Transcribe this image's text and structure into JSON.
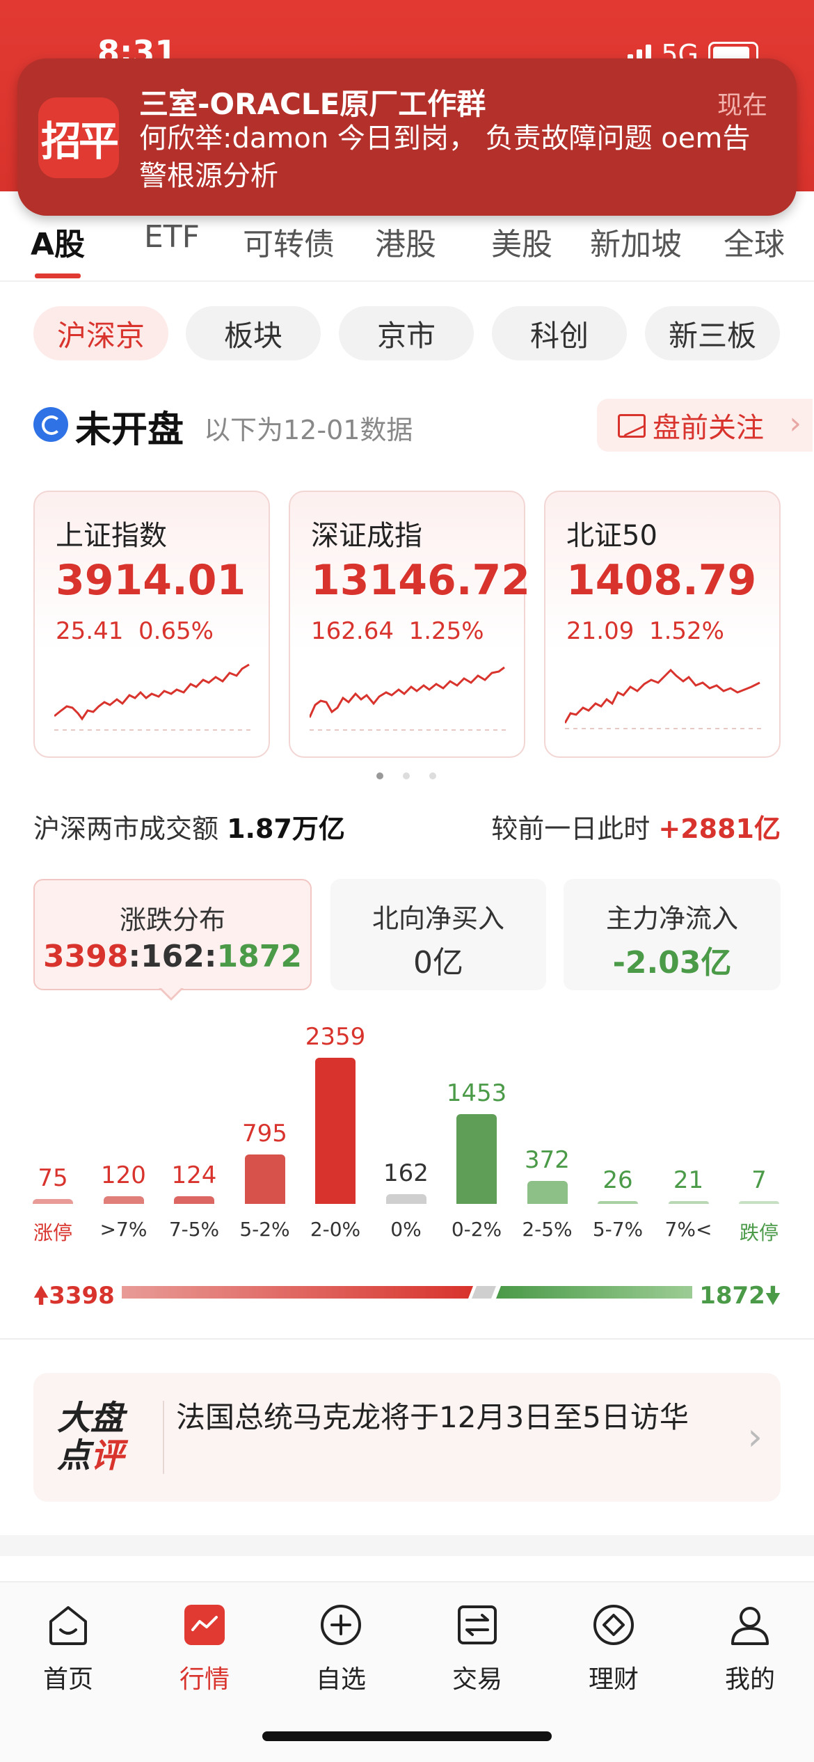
{
  "status_bar": {
    "time": "8:31",
    "network": "5G"
  },
  "notification": {
    "app_icon_text": "招平",
    "title": "三室-ORACLE原厂工作群",
    "time": "现在",
    "body": "何欣举:damon 今日到岗， 负责故障问题 oem告警根源分析"
  },
  "market_tabs": [
    "A股",
    "ETF",
    "可转债",
    "港股",
    "美股",
    "新加坡",
    "全球"
  ],
  "sub_tabs": [
    "沪深京",
    "板块",
    "京市",
    "科创",
    "新三板"
  ],
  "market_status": {
    "title": "未开盘",
    "subtitle": "以下为12-01数据",
    "premarket_label": "盘前关注"
  },
  "indices": [
    {
      "name": "上证指数",
      "value": "3914.01",
      "change": "25.41",
      "percent": "0.65%"
    },
    {
      "name": "深证成指",
      "value": "13146.72",
      "change": "162.64",
      "percent": "1.25%"
    },
    {
      "name": "北证50",
      "value": "1408.79",
      "change": "21.09",
      "percent": "1.52%"
    }
  ],
  "turnover": {
    "label": "沪深两市成交额",
    "value": "1.87万亿",
    "compare_label": "较前一日此时",
    "compare_value": "+2881亿"
  },
  "stats": {
    "updown": {
      "label": "涨跌分布",
      "up": "3398",
      "flat": "162",
      "down": "1872",
      "sep": ":"
    },
    "northbound": {
      "label": "北向净买入",
      "value": "0亿"
    },
    "mainflow": {
      "label": "主力净流入",
      "value": "-2.03亿"
    }
  },
  "chart_data": {
    "type": "bar",
    "categories": [
      "涨停",
      ">7%",
      "7-5%",
      "5-2%",
      "2-0%",
      "0%",
      "0-2%",
      "2-5%",
      "5-7%",
      "7%<",
      "跌停"
    ],
    "values": [
      75,
      120,
      124,
      795,
      2359,
      162,
      1453,
      372,
      26,
      21,
      7
    ],
    "colors": [
      "#e89b97",
      "#e07e79",
      "#dc6661",
      "#d8524c",
      "#d8332c",
      "#cfcfcf",
      "#5e9e57",
      "#8dc086",
      "#a9d0a3",
      "#b7d8b2",
      "#c7e0c3"
    ]
  },
  "ratio": {
    "up": "3398",
    "down": "1872"
  },
  "news": {
    "logo_line1": "大盘",
    "logo_line2a": "点",
    "logo_line2b": "评",
    "text": "法国总统马克龙将于12月3日至5日访华"
  },
  "nav": [
    {
      "label": "首页",
      "icon": "home-icon"
    },
    {
      "label": "行情",
      "icon": "market-icon"
    },
    {
      "label": "自选",
      "icon": "add-circle-icon"
    },
    {
      "label": "交易",
      "icon": "trade-icon"
    },
    {
      "label": "理财",
      "icon": "wealth-icon"
    },
    {
      "label": "我的",
      "icon": "profile-icon"
    }
  ]
}
